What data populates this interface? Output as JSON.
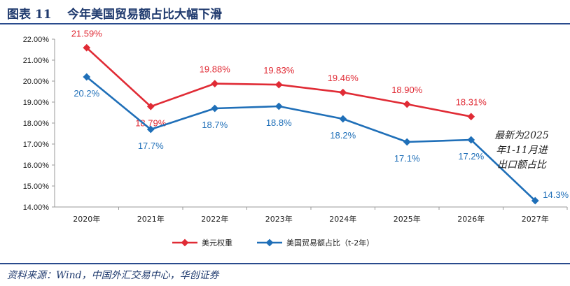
{
  "header": {
    "figure_label": "图表 11",
    "title": "今年美国贸易额占比大幅下滑"
  },
  "source": "资料来源：Wind，中国外汇交易中心，华创证券",
  "colors": {
    "red": "#e02b35",
    "blue": "#1f6fb8",
    "rule": "#2a4b8d"
  },
  "chart_data": {
    "type": "line",
    "categories": [
      "2020年",
      "2021年",
      "2022年",
      "2023年",
      "2024年",
      "2025年",
      "2026年",
      "2027年"
    ],
    "y_ticks": [
      "14.00%",
      "15.00%",
      "16.00%",
      "17.00%",
      "18.00%",
      "19.00%",
      "20.00%",
      "21.00%",
      "22.00%"
    ],
    "ylim": [
      14,
      22
    ],
    "grid": false,
    "legend_position": "bottom",
    "series": [
      {
        "name": "美元权重",
        "color": "#e02b35",
        "values": [
          21.59,
          18.79,
          19.88,
          19.83,
          19.46,
          18.9,
          18.31,
          null
        ],
        "labels": [
          "21.59%",
          "18.79%",
          "19.88%",
          "19.83%",
          "19.46%",
          "18.90%",
          "18.31%",
          ""
        ]
      },
      {
        "name": "美国贸易额占比（t-2年）",
        "color": "#1f6fb8",
        "values": [
          20.2,
          17.7,
          18.7,
          18.8,
          18.2,
          17.1,
          17.2,
          14.3
        ],
        "labels": [
          "20.2%",
          "17.7%",
          "18.7%",
          "18.8%",
          "18.2%",
          "17.1%",
          "17.2%",
          "14.3%"
        ]
      }
    ],
    "annotation": [
      "最新为2025",
      "年1-11月进",
      "出口额占比"
    ]
  }
}
